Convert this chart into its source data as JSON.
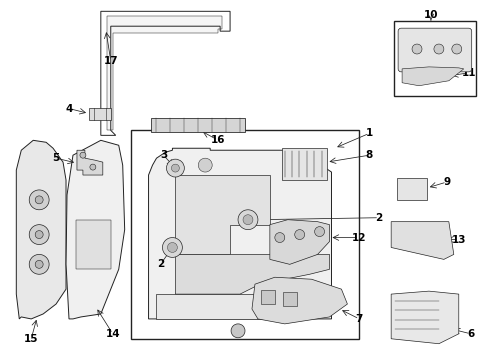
{
  "bg_color": "#ffffff",
  "line_color": "#222222",
  "label_color": "#000000",
  "fig_width": 4.89,
  "fig_height": 3.6,
  "dpi": 100
}
